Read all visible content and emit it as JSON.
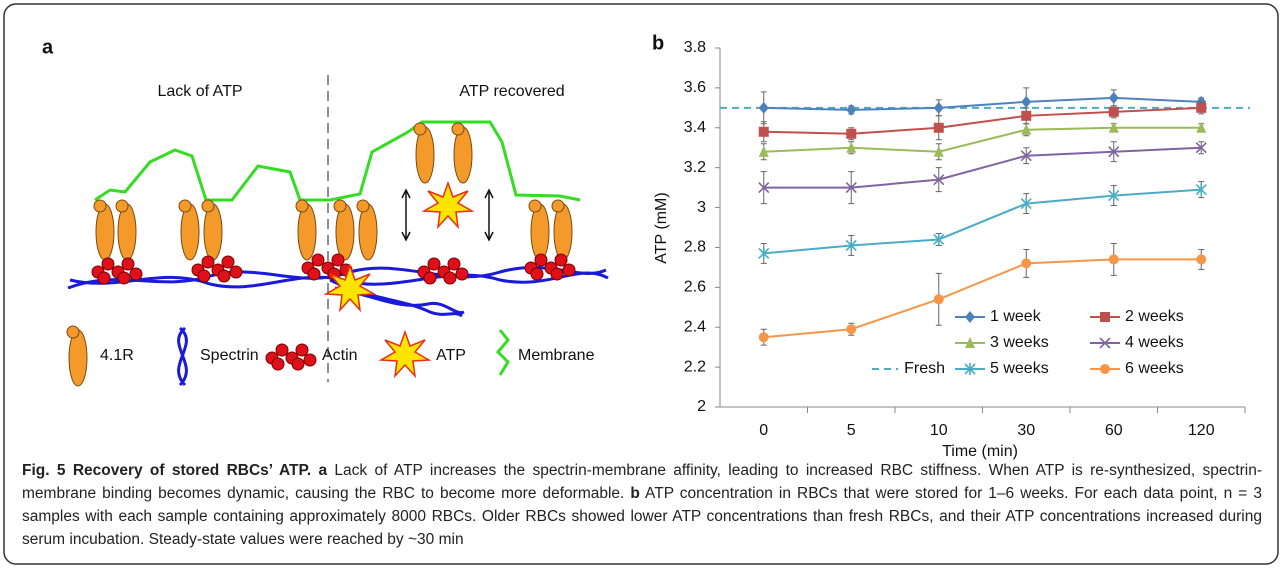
{
  "panel_a": {
    "label": "a",
    "left_title": "Lack of ATP",
    "right_title": "ATP recovered",
    "legend": [
      "4.1R",
      "Spectrin",
      "Actin",
      "ATP",
      "Membrane"
    ]
  },
  "chart_data": {
    "type": "line",
    "panel_label": "b",
    "x_label": "Time (min)",
    "y_label": "ATP (mM)",
    "categories": [
      "0",
      "5",
      "10",
      "30",
      "60",
      "120"
    ],
    "ylim": [
      2,
      3.8
    ],
    "yticks": [
      2,
      2.2,
      2.4,
      2.6,
      2.8,
      3,
      3.2,
      3.4,
      3.6,
      3.8
    ],
    "grid": false,
    "series": [
      {
        "name": "1 week",
        "color": "#4f81bd",
        "marker": "diamond",
        "values": [
          3.5,
          3.49,
          3.5,
          3.53,
          3.55,
          3.53
        ],
        "errors": [
          0.08,
          0.02,
          0.04,
          0.07,
          0.04,
          0.02
        ]
      },
      {
        "name": "2 weeks",
        "color": "#c0504d",
        "marker": "square",
        "values": [
          3.38,
          3.37,
          3.4,
          3.46,
          3.48,
          3.5
        ],
        "errors": [
          0.05,
          0.03,
          0.06,
          0.04,
          0.03,
          0.03
        ]
      },
      {
        "name": "3 weeks",
        "color": "#9bbb59",
        "marker": "triangle",
        "values": [
          3.28,
          3.3,
          3.28,
          3.39,
          3.4,
          3.4
        ],
        "errors": [
          0.04,
          0.03,
          0.04,
          0.03,
          0.02,
          0.02
        ]
      },
      {
        "name": "4 weeks",
        "color": "#8064a2",
        "marker": "x",
        "values": [
          3.1,
          3.1,
          3.14,
          3.26,
          3.28,
          3.3
        ],
        "errors": [
          0.08,
          0.08,
          0.06,
          0.04,
          0.05,
          0.03
        ]
      },
      {
        "name": "5 weeks",
        "color": "#4bacc6",
        "marker": "star",
        "values": [
          2.77,
          2.81,
          2.84,
          3.02,
          3.06,
          3.09
        ],
        "errors": [
          0.05,
          0.05,
          0.03,
          0.05,
          0.05,
          0.04
        ]
      },
      {
        "name": "6 weeks",
        "color": "#f79646",
        "marker": "circle",
        "values": [
          2.35,
          2.39,
          2.54,
          2.72,
          2.74,
          2.74
        ],
        "errors": [
          0.04,
          0.03,
          0.13,
          0.07,
          0.08,
          0.05
        ]
      }
    ],
    "reference_lines": [
      {
        "name": "Fresh",
        "value": 3.5,
        "color": "#4bacc6",
        "dashed": true
      }
    ]
  },
  "caption": {
    "title": "Fig. 5 Recovery of stored RBCs’ ATP.",
    "parts": [
      {
        "label": "a",
        "text": "Lack of ATP increases the spectrin-membrane affinity, leading to increased RBC stiffness. When ATP is re-synthesized, spectrin-membrane binding becomes dynamic, causing the RBC to become more deformable."
      },
      {
        "label": "b",
        "text": "ATP concentration in RBCs that were stored for 1–6 weeks. For each data point, n = 3 samples with each sample containing approximately 8000 RBCs. Older RBCs showed lower ATP concentrations than fresh RBCs, and their ATP concentrations increased during serum incubation. Steady-state values were reached by ~30 min"
      }
    ]
  }
}
